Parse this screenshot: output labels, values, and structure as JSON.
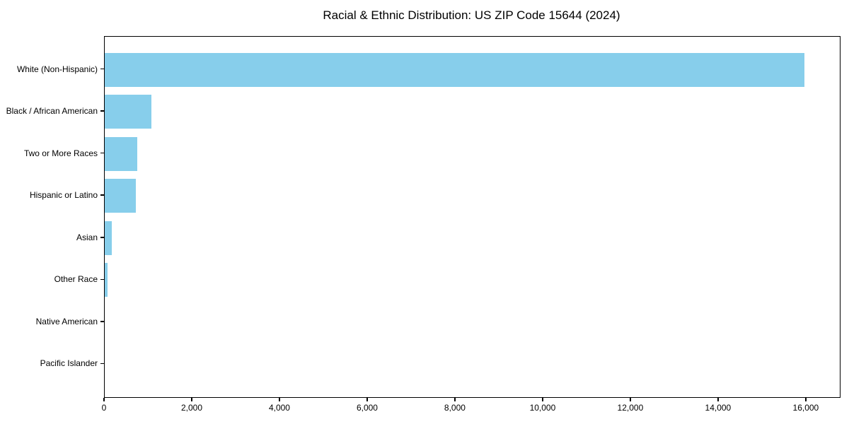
{
  "chart_data": {
    "type": "bar",
    "orientation": "horizontal",
    "title": "Racial & Ethnic Distribution: US ZIP Code 15644 (2024)",
    "categories": [
      "White (Non-Hispanic)",
      "Black / African American",
      "Two or More Races",
      "Hispanic or Latino",
      "Asian",
      "Other Race",
      "Native American",
      "Pacific Islander"
    ],
    "values": [
      15960,
      1065,
      740,
      705,
      155,
      65,
      0,
      0
    ],
    "xlabel": "",
    "ylabel": "",
    "xlim": [
      0,
      16760
    ],
    "xticks": [
      0,
      2000,
      4000,
      6000,
      8000,
      10000,
      12000,
      14000,
      16000
    ],
    "xtick_labels": [
      "0",
      "2,000",
      "4,000",
      "6,000",
      "8,000",
      "10,000",
      "12,000",
      "14,000",
      "16,000"
    ],
    "bar_color": "#87CEEB",
    "axis_color": "#000000",
    "background_color": "#FFFFFF",
    "grid": false,
    "legend": null
  }
}
